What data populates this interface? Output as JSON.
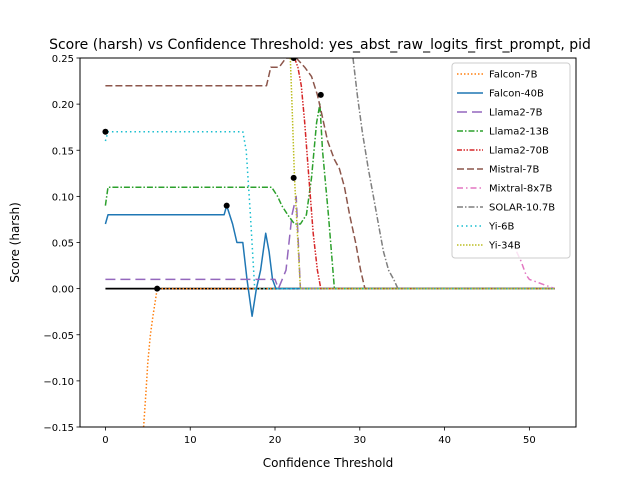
{
  "chart_data": {
    "type": "line",
    "title": "Score (harsh) vs Confidence Threshold: yes_abst_raw_logits_first_prompt, pid",
    "xlabel": "Confidence Threshold",
    "ylabel": "Score (harsh)",
    "xlim": [
      -3.0,
      55.5
    ],
    "ylim": [
      -0.15,
      0.25
    ],
    "xticks": [
      0,
      10,
      20,
      30,
      40,
      50
    ],
    "yticks": [
      -0.15,
      -0.1,
      -0.05,
      0.0,
      0.05,
      0.1,
      0.15,
      0.2,
      0.25
    ],
    "xtick_labels": [
      "0",
      "10",
      "20",
      "30",
      "40",
      "50"
    ],
    "ytick_labels": [
      "−0.15",
      "−0.10",
      "−0.05",
      "0.00",
      "0.05",
      "0.10",
      "0.15",
      "0.20",
      "0.25"
    ],
    "grid": false,
    "legend_position": "top-right",
    "baseline": {
      "x": [
        0,
        52.5
      ],
      "y": 0.0,
      "color": "#000000"
    },
    "series": [
      {
        "name": "Falcon-7B",
        "color": "#ff7f0e",
        "dash": "1.5,2",
        "x": [
          4.5,
          4.8,
          5.0,
          5.3,
          5.6,
          5.9,
          6.1,
          6.5,
          53
        ],
        "y": [
          -0.15,
          -0.11,
          -0.08,
          -0.05,
          -0.03,
          -0.012,
          0.0,
          0.0,
          0.0
        ]
      },
      {
        "name": "Falcon-40B",
        "color": "#1f77b4",
        "dash": "",
        "x": [
          0,
          0.3,
          14.0,
          14.3,
          15.0,
          15.5,
          16.2,
          16.7,
          17.3,
          17.8,
          18.3,
          18.9,
          19.3,
          19.7,
          20.1,
          53
        ],
        "y": [
          0.07,
          0.08,
          0.08,
          0.09,
          0.07,
          0.05,
          0.05,
          0.01,
          -0.03,
          0.0,
          0.02,
          0.06,
          0.04,
          0.01,
          0.0,
          0.0
        ]
      },
      {
        "name": "Llama2-7B",
        "color": "#9467bd",
        "dash": "10,5",
        "x": [
          0,
          16.5,
          17.0,
          20.0,
          20.4,
          21.3,
          22.0,
          22.5,
          23.0,
          53
        ],
        "y": [
          0.01,
          0.01,
          0.01,
          0.01,
          0.0,
          0.02,
          0.08,
          0.1,
          0.0,
          0.0
        ]
      },
      {
        "name": "Llama2-13B",
        "color": "#2ca02c",
        "dash": "6,2,1.5,2",
        "x": [
          0,
          0.3,
          18.8,
          19.6,
          20.3,
          20.8,
          21.5,
          22.3,
          23.0,
          23.7,
          24.3,
          24.9,
          25.3,
          25.6,
          26.3,
          27.0,
          53
        ],
        "y": [
          0.09,
          0.11,
          0.11,
          0.11,
          0.1,
          0.09,
          0.08,
          0.07,
          0.07,
          0.08,
          0.12,
          0.18,
          0.2,
          0.15,
          0.08,
          0.0,
          0.0
        ]
      },
      {
        "name": "Llama2-70B",
        "color": "#d62728",
        "dash": "5,1.5,1.5,1.5,1.5,1.5",
        "x": [
          22.3,
          22.7,
          23.1,
          23.5,
          24.0,
          24.5,
          25.0,
          25.4,
          53
        ],
        "y": [
          0.25,
          0.24,
          0.22,
          0.18,
          0.12,
          0.06,
          0.02,
          0.0,
          0.0
        ]
      },
      {
        "name": "Mistral-7B",
        "color": "#8c564b",
        "dash": "7,3",
        "x": [
          0,
          19.0,
          19.5,
          20.5,
          21.3,
          22.0,
          22.5,
          23.5,
          24.3,
          25.0,
          25.5,
          26.2,
          27.0,
          27.6,
          28.2,
          28.8,
          29.5,
          30.1,
          30.6,
          53
        ],
        "y": [
          0.22,
          0.22,
          0.24,
          0.24,
          0.25,
          0.25,
          0.25,
          0.24,
          0.23,
          0.21,
          0.19,
          0.16,
          0.14,
          0.13,
          0.11,
          0.08,
          0.05,
          0.02,
          0.0,
          0.0
        ]
      },
      {
        "name": "Mixtral-8x7B",
        "color": "#e377c2",
        "dash": "6,3,1.5,3",
        "x": [
          48.5,
          49.0,
          49.6,
          50.0,
          53
        ],
        "y": [
          0.04,
          0.03,
          0.015,
          0.01,
          0.0
        ]
      },
      {
        "name": "SOLAR-10.7B",
        "color": "#7f7f7f",
        "dash": "6,2,1.5,2",
        "x": [
          29.2,
          29.7,
          30.3,
          31.0,
          31.6,
          32.2,
          32.8,
          33.4,
          34.0,
          34.5,
          53
        ],
        "y": [
          0.25,
          0.21,
          0.17,
          0.13,
          0.1,
          0.07,
          0.04,
          0.02,
          0.01,
          0.0,
          0.0
        ]
      },
      {
        "name": "Yi-6B",
        "color": "#17becf",
        "dash": "1.5,3",
        "x": [
          0,
          0.3,
          16.2,
          16.6,
          17.1,
          17.6,
          18.1,
          53
        ],
        "y": [
          0.16,
          0.17,
          0.17,
          0.15,
          0.08,
          0.0,
          0.0,
          0.0
        ]
      },
      {
        "name": "Yi-34B",
        "color": "#bcbd22",
        "dash": "1.5,1.5",
        "x": [
          21.8,
          22.0,
          22.3,
          22.7,
          23.0,
          53
        ],
        "y": [
          0.25,
          0.2,
          0.12,
          0.05,
          0.0,
          0.0
        ]
      }
    ],
    "markers": [
      {
        "x": 0.0,
        "y": 0.17
      },
      {
        "x": 6.1,
        "y": 0.0
      },
      {
        "x": 14.3,
        "y": 0.09
      },
      {
        "x": 22.2,
        "y": 0.12
      },
      {
        "x": 22.2,
        "y": 0.25
      },
      {
        "x": 25.4,
        "y": 0.21
      }
    ]
  }
}
